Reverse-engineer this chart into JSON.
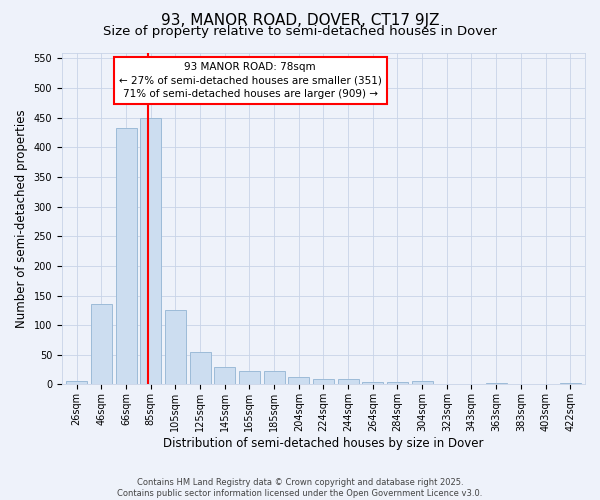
{
  "title": "93, MANOR ROAD, DOVER, CT17 9JZ",
  "subtitle": "Size of property relative to semi-detached houses in Dover",
  "xlabel": "Distribution of semi-detached houses by size in Dover",
  "ylabel": "Number of semi-detached properties",
  "categories": [
    "26sqm",
    "46sqm",
    "66sqm",
    "85sqm",
    "105sqm",
    "125sqm",
    "145sqm",
    "165sqm",
    "185sqm",
    "204sqm",
    "224sqm",
    "244sqm",
    "264sqm",
    "284sqm",
    "304sqm",
    "323sqm",
    "343sqm",
    "363sqm",
    "383sqm",
    "403sqm",
    "422sqm"
  ],
  "values": [
    5,
    136,
    433,
    450,
    126,
    55,
    30,
    22,
    22,
    13,
    10,
    10,
    4,
    4,
    5,
    1,
    1,
    2,
    0,
    1,
    2
  ],
  "bar_color": "#ccddf0",
  "bar_edge_color": "#9dbbd8",
  "vline_x": 2.87,
  "vline_color": "red",
  "annotation_text": "93 MANOR ROAD: 78sqm\n← 27% of semi-detached houses are smaller (351)\n71% of semi-detached houses are larger (909) →",
  "annotation_box_color": "white",
  "annotation_box_edge_color": "red",
  "ylim": [
    0,
    560
  ],
  "yticks": [
    0,
    50,
    100,
    150,
    200,
    250,
    300,
    350,
    400,
    450,
    500,
    550
  ],
  "bg_color": "#eef2fa",
  "grid_color": "#c8d4e8",
  "footnote": "Contains HM Land Registry data © Crown copyright and database right 2025.\nContains public sector information licensed under the Open Government Licence v3.0.",
  "title_fontsize": 11,
  "subtitle_fontsize": 9.5,
  "axis_label_fontsize": 8.5,
  "tick_fontsize": 7,
  "annotation_fontsize": 7.5,
  "footnote_fontsize": 6
}
